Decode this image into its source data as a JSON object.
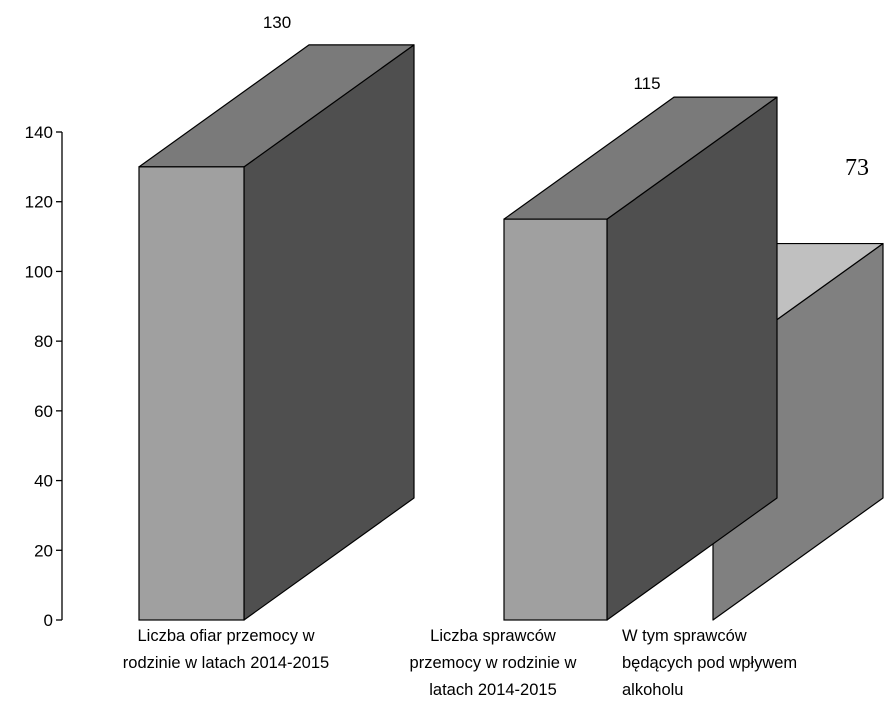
{
  "chart_data": {
    "type": "bar",
    "categories": [
      [
        "Liczba ofiar przemocy w",
        "rodzinie w latach 2014-2015"
      ],
      [
        "Liczba sprawców",
        "przemocy w rodzinie w",
        "latach 2014-2015"
      ],
      [
        "W tym sprawców",
        "będących pod wpływem",
        "alkoholu"
      ]
    ],
    "values": [
      130,
      115,
      73
    ],
    "data_labels": [
      "130",
      "115",
      "73"
    ],
    "ylim": [
      0,
      140
    ],
    "yticks": [
      0,
      20,
      40,
      60,
      80,
      100,
      120,
      140
    ],
    "grid": false,
    "legend": "none",
    "colors": {
      "front": "#a0a0a0",
      "side_dark": "#4f4f4f",
      "top_dark": "#7a7a7a",
      "side_light": "#808080",
      "top_light": "#c0c0c0",
      "axis": "#000000"
    }
  }
}
